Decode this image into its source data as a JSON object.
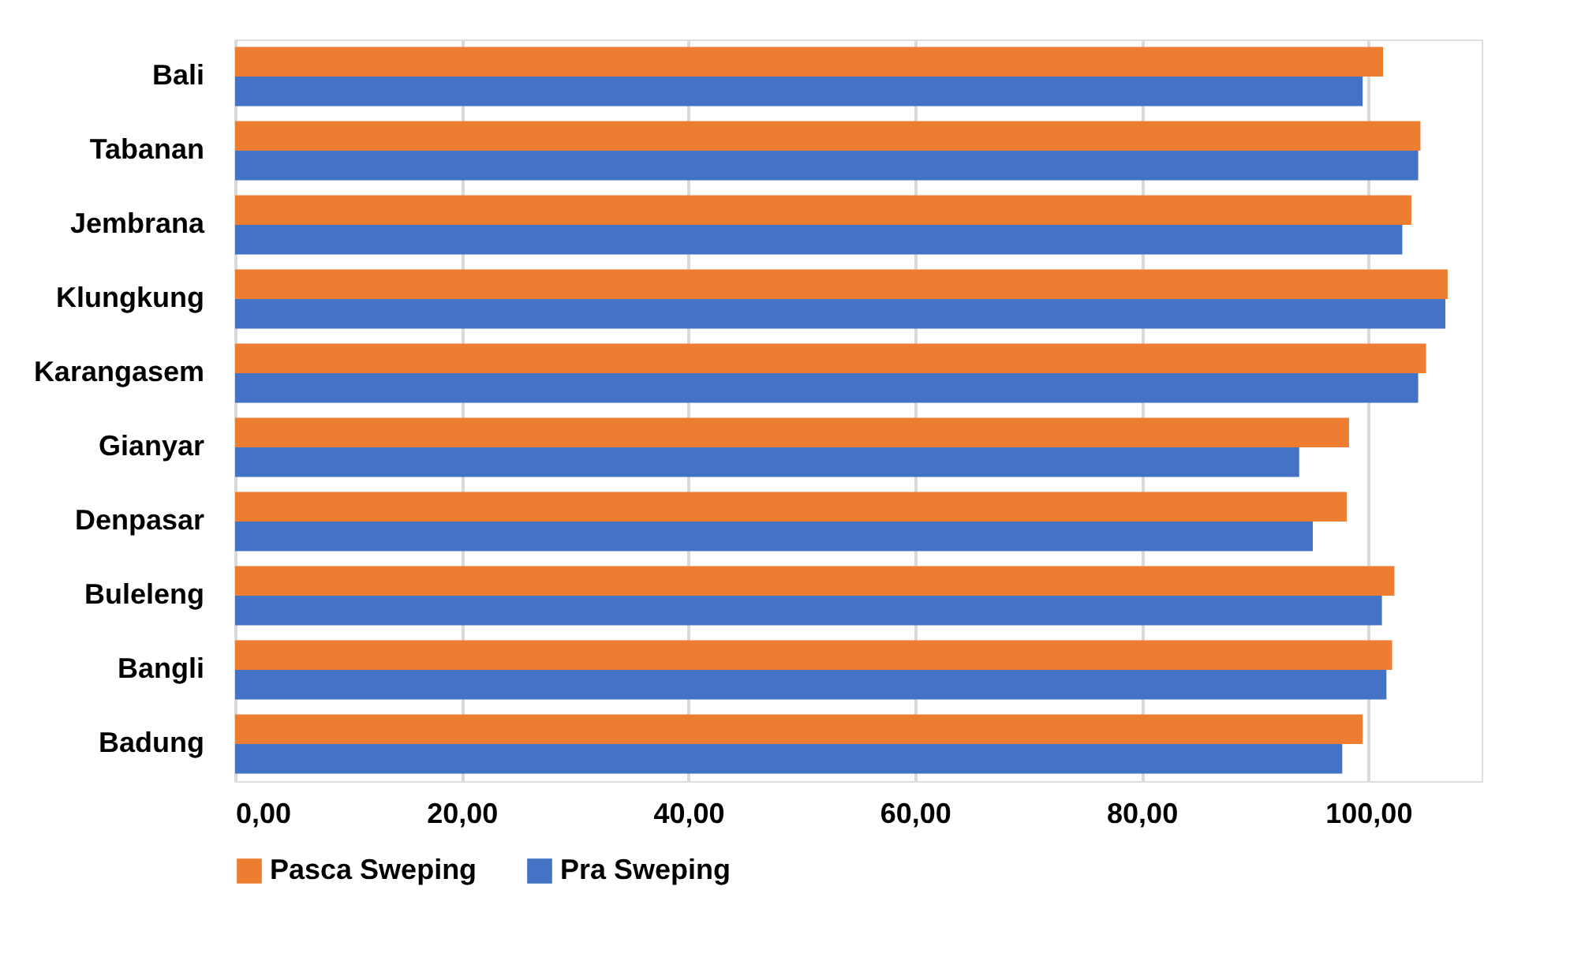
{
  "chart_data": {
    "type": "bar",
    "orientation": "horizontal",
    "categories": [
      "Bali",
      "Tabanan",
      "Jembrana",
      "Klungkung",
      "Karangasem",
      "Gianyar",
      "Denpasar",
      "Buleleng",
      "Bangli",
      "Badung"
    ],
    "series": [
      {
        "name": "Pasca Sweping",
        "color": "#ed7d31",
        "values": [
          101.3,
          104.6,
          103.8,
          107.0,
          105.1,
          98.3,
          98.1,
          102.3,
          102.1,
          99.5
        ]
      },
      {
        "name": "Pra Sweping",
        "color": "#4472c4",
        "values": [
          99.5,
          104.4,
          103.0,
          106.8,
          104.4,
          93.9,
          95.1,
          101.2,
          101.6,
          97.7
        ]
      }
    ],
    "xlim": [
      0,
      110
    ],
    "xticks": [
      {
        "value": 0,
        "label": "0,00"
      },
      {
        "value": 20,
        "label": "20,00"
      },
      {
        "value": 40,
        "label": "40,00"
      },
      {
        "value": 60,
        "label": "60,00"
      },
      {
        "value": 80,
        "label": "80,00"
      },
      {
        "value": 100,
        "label": "100,00"
      }
    ],
    "grid": "x",
    "legend": "bottom"
  }
}
